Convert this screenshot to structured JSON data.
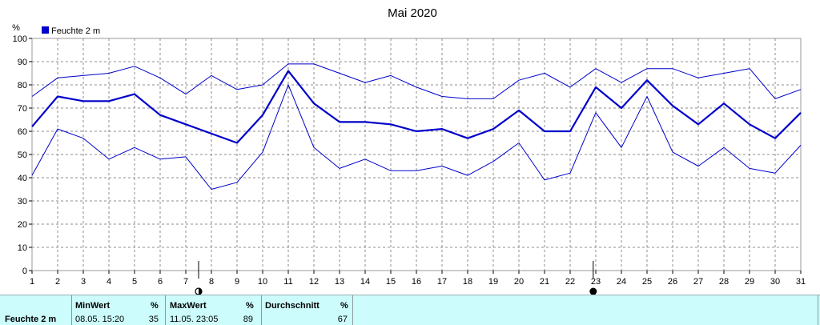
{
  "chart_data": {
    "type": "line",
    "title": "Mai 2020",
    "ylabel": "%",
    "xlabel": "",
    "ylim": [
      0,
      100
    ],
    "xlim": [
      1,
      31
    ],
    "yticks": [
      0,
      10,
      20,
      30,
      40,
      50,
      60,
      70,
      80,
      90,
      100
    ],
    "x": [
      1,
      2,
      3,
      4,
      5,
      6,
      7,
      8,
      9,
      10,
      11,
      12,
      13,
      14,
      15,
      16,
      17,
      18,
      19,
      20,
      21,
      22,
      23,
      24,
      25,
      26,
      27,
      28,
      29,
      30,
      31
    ],
    "grid": true,
    "legend": {
      "label": "Feuchte  2 m",
      "color": "#0000cc",
      "position": "top-left"
    },
    "series": [
      {
        "role": "max",
        "color": "#0000cc",
        "values": [
          75,
          83,
          84,
          85,
          88,
          83,
          76,
          84,
          78,
          80,
          89,
          89,
          85,
          81,
          84,
          79,
          75,
          74,
          74,
          82,
          85,
          79,
          87,
          81,
          87,
          87,
          83,
          85,
          87,
          74,
          78
        ]
      },
      {
        "role": "mean",
        "color": "#0000cc",
        "values": [
          62,
          75,
          73,
          73,
          76,
          67,
          63,
          59,
          55,
          67,
          86,
          72,
          64,
          64,
          63,
          60,
          61,
          57,
          61,
          69,
          60,
          60,
          79,
          70,
          82,
          71,
          63,
          72,
          63,
          57,
          68
        ]
      },
      {
        "role": "min",
        "color": "#0000cc",
        "values": [
          41,
          61,
          57,
          48,
          53,
          48,
          49,
          35,
          38,
          51,
          80,
          53,
          44,
          48,
          43,
          43,
          45,
          41,
          47,
          55,
          39,
          42,
          68,
          53,
          75,
          51,
          45,
          53,
          44,
          42,
          54
        ]
      }
    ],
    "moon_phases": [
      {
        "day": 7.5,
        "phase": "first-quarter"
      },
      {
        "day": 22.9,
        "phase": "new-moon"
      }
    ]
  },
  "footer": {
    "row_label": "Feuchte   2 m",
    "min_header": "MinWert",
    "min_unit": "%",
    "min_time": "08.05.  15:20",
    "min_value": "35",
    "max_header": "MaxWert",
    "max_unit": "%",
    "max_time": "11.05.  23:05",
    "max_value": "89",
    "avg_header": "Durchschnitt",
    "avg_unit": "%",
    "avg_value": "67"
  }
}
